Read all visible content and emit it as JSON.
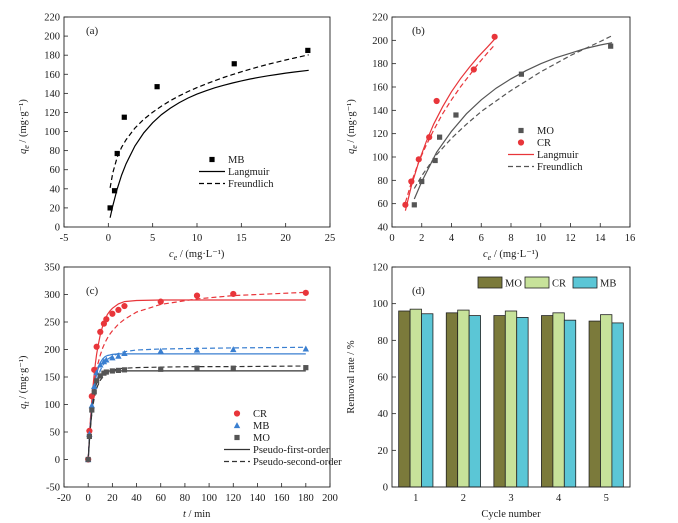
{
  "chart_data": [
    {
      "panel": "(a)",
      "type": "scatter",
      "xlabel": "c_e / (mg·L⁻¹)",
      "ylabel": "q_e / (mg·g⁻¹)",
      "xlim": [
        -5,
        25
      ],
      "ylim": [
        0,
        220
      ],
      "xticks": [
        -5,
        0,
        5,
        10,
        15,
        20,
        25
      ],
      "yticks": [
        0,
        20,
        40,
        60,
        80,
        100,
        120,
        140,
        160,
        180,
        200,
        220
      ],
      "legend_position": "right-middle",
      "series": [
        {
          "name": "MB",
          "kind": "points",
          "marker": "square",
          "color": "#000000",
          "x": [
            0.2,
            0.7,
            1.0,
            1.8,
            5.5,
            14.2,
            22.5
          ],
          "y": [
            20,
            38,
            77,
            115,
            147,
            171,
            185
          ]
        },
        {
          "name": "Langmuir",
          "kind": "line",
          "dash": "solid",
          "color": "#000000",
          "x": [
            0.2,
            0.5,
            1,
            1.5,
            2,
            3,
            4,
            5,
            6,
            7,
            8,
            9,
            10,
            11,
            12,
            13,
            14,
            15,
            16,
            17,
            18,
            19,
            20,
            21,
            22.6
          ],
          "y": [
            9.6,
            22.2,
            39.9,
            54.4,
            66.3,
            84.9,
            98.7,
            109.3,
            117.8,
            124.6,
            130.3,
            135.1,
            139.2,
            142.7,
            145.8,
            148.5,
            150.9,
            153.1,
            155.0,
            156.8,
            158.4,
            159.8,
            161.2,
            162.4,
            164.2
          ]
        },
        {
          "name": "Freundlich",
          "kind": "line",
          "dash": "dashed",
          "color": "#000000",
          "x": [
            0.2,
            0.5,
            1,
            1.5,
            2,
            3,
            4,
            5,
            6,
            7,
            8,
            9,
            10,
            11,
            12,
            13,
            14,
            15,
            16,
            17,
            18,
            19,
            20,
            21,
            22.6
          ],
          "y": [
            41.0,
            56.8,
            73.1,
            83.5,
            91.5,
            103.6,
            112.8,
            120.3,
            126.7,
            132.4,
            137.4,
            141.9,
            146.0,
            149.8,
            153.3,
            156.6,
            159.7,
            162.6,
            165.3,
            167.9,
            170.4,
            172.7,
            175.0,
            177.1,
            180.4
          ]
        }
      ]
    },
    {
      "panel": "(b)",
      "type": "scatter",
      "xlabel": "c_e / (mg·L⁻¹)",
      "ylabel": "q_e / (mg·g⁻¹)",
      "xlim": [
        0,
        16
      ],
      "ylim": [
        40,
        220
      ],
      "xticks": [
        0,
        2,
        4,
        6,
        8,
        10,
        12,
        14,
        16
      ],
      "yticks": [
        40,
        60,
        80,
        100,
        120,
        140,
        160,
        180,
        200,
        220
      ],
      "legend_position": "right-middle",
      "series": [
        {
          "name": "MO",
          "kind": "points",
          "marker": "square",
          "color": "#555555",
          "x": [
            1.5,
            2.0,
            2.9,
            3.2,
            4.3,
            8.7,
            14.7
          ],
          "y": [
            59,
            79,
            97,
            117,
            136,
            171,
            195
          ]
        },
        {
          "name": "CR",
          "kind": "points",
          "marker": "circle",
          "color": "#e8353a",
          "x": [
            0.9,
            1.3,
            1.8,
            2.5,
            3.0,
            5.5,
            6.9
          ],
          "y": [
            59,
            79,
            98,
            117,
            148,
            175,
            203
          ]
        },
        {
          "name": "Langmuir",
          "kind": "line",
          "dash": "solid",
          "color": "#e8353a",
          "x": [
            0.9,
            1.3,
            1.8,
            2.3,
            2.8,
            3.4,
            4.0,
            4.6,
            5.2,
            5.8,
            6.4,
            6.9
          ],
          "y": [
            54,
            75,
            96,
            113,
            128,
            143,
            156,
            167,
            177,
            186,
            194,
            201
          ]
        },
        {
          "name": "Freundlich",
          "kind": "line",
          "dash": "dashed",
          "color": "#e8353a",
          "x": [
            0.9,
            1.3,
            1.8,
            2.3,
            2.8,
            3.4,
            4.0,
            4.6,
            5.2,
            5.8,
            6.4,
            6.9
          ],
          "y": [
            61,
            78,
            96,
            110,
            123,
            137,
            149,
            160,
            170,
            180,
            189,
            196
          ]
        },
        {
          "name": "Langmuir",
          "kind": "line",
          "dash": "solid",
          "color": "#555555",
          "x": [
            1.5,
            2.0,
            3.0,
            4.0,
            5.0,
            6.0,
            7.0,
            8.0,
            9.0,
            10.0,
            11.0,
            12.0,
            13.0,
            14.0,
            14.8
          ],
          "y": [
            64,
            79,
            104,
            122,
            137,
            149,
            159,
            167,
            174,
            180,
            185,
            189,
            193,
            196,
            198
          ]
        },
        {
          "name": "Freundlich",
          "kind": "line",
          "dash": "dashed",
          "color": "#555555",
          "x": [
            1.5,
            2.0,
            3.0,
            4.0,
            5.0,
            6.0,
            7.0,
            8.0,
            9.0,
            10.0,
            11.0,
            12.0,
            13.0,
            14.0,
            14.8
          ],
          "y": [
            73,
            84,
            102,
            116,
            128,
            139,
            148,
            157,
            165,
            173,
            180,
            187,
            193,
            199,
            204
          ]
        }
      ],
      "legend": [
        {
          "name": "MO",
          "kind": "points",
          "marker": "square",
          "color": "#555555"
        },
        {
          "name": "CR",
          "kind": "points",
          "marker": "circle",
          "color": "#e8353a"
        },
        {
          "name": "Langmuir",
          "kind": "line",
          "dash": "solid",
          "color": "#e8353a"
        },
        {
          "name": "Freundlich",
          "kind": "line",
          "dash": "dashed",
          "color": "#555555"
        }
      ]
    },
    {
      "panel": "(c)",
      "type": "scatter",
      "xlabel": "t / min",
      "ylabel": "q_t / (mg·g⁻¹)",
      "xlim": [
        -20,
        200
      ],
      "ylim": [
        -50,
        350
      ],
      "xticks": [
        -20,
        0,
        20,
        40,
        60,
        80,
        100,
        120,
        140,
        160,
        180,
        200
      ],
      "yticks": [
        -50,
        0,
        50,
        100,
        150,
        200,
        250,
        300,
        350
      ],
      "legend_position": "bottom-right",
      "series": [
        {
          "name": "CR",
          "kind": "points",
          "marker": "circle",
          "color": "#e8353a",
          "x": [
            0,
            1,
            3,
            5,
            7,
            10,
            13,
            15,
            20,
            25,
            30,
            60,
            90,
            120,
            180
          ],
          "y": [
            0,
            52,
            115,
            163,
            205,
            232,
            247,
            255,
            265,
            272,
            279,
            287,
            298,
            301,
            303
          ]
        },
        {
          "name": "MB",
          "kind": "points",
          "marker": "triangle",
          "color": "#3a7fd0",
          "x": [
            0,
            1,
            3,
            5,
            7,
            10,
            13,
            15,
            20,
            25,
            30,
            60,
            90,
            120,
            180
          ],
          "y": [
            0,
            46,
            98,
            133,
            158,
            172,
            178,
            181,
            185,
            188,
            193,
            197,
            199,
            200,
            201
          ]
        },
        {
          "name": "MO",
          "kind": "points",
          "marker": "square",
          "color": "#555555",
          "x": [
            0,
            1,
            3,
            5,
            7,
            10,
            13,
            15,
            20,
            25,
            30,
            60,
            90,
            120,
            180
          ],
          "y": [
            0,
            42,
            90,
            123,
            143,
            152,
            157,
            159,
            161,
            162,
            163,
            164,
            166,
            166,
            167
          ]
        },
        {
          "name": "Pseudo-first-order",
          "kind": "line",
          "dash": "solid",
          "color": "#e8353a",
          "x": [
            0,
            1,
            2,
            3,
            4,
            5,
            6,
            7,
            8,
            10,
            12,
            14,
            16,
            18,
            20,
            25,
            30,
            40,
            60,
            90,
            120,
            180
          ],
          "y": [
            0,
            41,
            77,
            107,
            133,
            155,
            175,
            191,
            205,
            227,
            243,
            255,
            264,
            270,
            275,
            283,
            287,
            289,
            290,
            290,
            290,
            290
          ]
        },
        {
          "name": "Pseudo-second-order",
          "kind": "line",
          "dash": "dashed",
          "color": "#e8353a",
          "x": [
            0,
            1,
            2,
            3,
            4,
            5,
            6,
            7,
            8,
            10,
            12,
            14,
            16,
            18,
            20,
            25,
            30,
            40,
            60,
            90,
            120,
            180
          ],
          "y": [
            0,
            44,
            77,
            102,
            122,
            139,
            153,
            164,
            174,
            190,
            203,
            213,
            221,
            228,
            234,
            246,
            255,
            268,
            282,
            292,
            298,
            304
          ]
        },
        {
          "name": "Pseudo-first-order",
          "kind": "line",
          "dash": "solid",
          "color": "#3a7fd0",
          "x": [
            0,
            1,
            2,
            3,
            4,
            5,
            6,
            7,
            8,
            10,
            12,
            14,
            16,
            18,
            20,
            25,
            30,
            40,
            60,
            90,
            120,
            180
          ],
          "y": [
            0,
            36,
            67,
            92,
            113,
            130,
            144,
            155,
            164,
            176,
            183,
            187,
            189,
            190,
            191,
            192,
            192,
            192,
            192,
            192,
            192,
            192
          ]
        },
        {
          "name": "Pseudo-second-order",
          "kind": "line",
          "dash": "dashed",
          "color": "#3a7fd0",
          "x": [
            0,
            1,
            2,
            3,
            4,
            5,
            6,
            7,
            8,
            10,
            12,
            14,
            16,
            18,
            20,
            25,
            30,
            40,
            60,
            90,
            120,
            180
          ],
          "y": [
            0,
            38,
            67,
            89,
            107,
            121,
            132,
            142,
            150,
            162,
            171,
            177,
            182,
            185,
            188,
            193,
            196,
            199,
            201,
            202,
            203,
            204
          ]
        },
        {
          "name": "Pseudo-first-order",
          "kind": "line",
          "dash": "solid",
          "color": "#333333",
          "x": [
            0,
            1,
            2,
            3,
            4,
            5,
            6,
            7,
            8,
            10,
            12,
            14,
            16,
            18,
            20,
            25,
            30,
            40,
            60,
            90,
            120,
            180
          ],
          "y": [
            0,
            33,
            62,
            86,
            105,
            120,
            131,
            139,
            145,
            153,
            157,
            159,
            160,
            161,
            161,
            161,
            161,
            161,
            161,
            161,
            161,
            161
          ]
        },
        {
          "name": "Pseudo-second-order",
          "kind": "line",
          "dash": "dashed",
          "color": "#333333",
          "x": [
            0,
            1,
            2,
            3,
            4,
            5,
            6,
            7,
            8,
            10,
            12,
            14,
            16,
            18,
            20,
            25,
            30,
            40,
            60,
            90,
            120,
            180
          ],
          "y": [
            0,
            35,
            62,
            83,
            99,
            111,
            121,
            129,
            135,
            144,
            150,
            155,
            158,
            160,
            162,
            165,
            166,
            167,
            168,
            169,
            169,
            170
          ]
        }
      ],
      "legend": [
        {
          "name": "CR",
          "kind": "points",
          "marker": "circle",
          "color": "#e8353a"
        },
        {
          "name": "MB",
          "kind": "points",
          "marker": "triangle",
          "color": "#3a7fd0"
        },
        {
          "name": "MO",
          "kind": "points",
          "marker": "square",
          "color": "#555555"
        },
        {
          "name": "Pseudo-first-order",
          "kind": "line",
          "dash": "solid",
          "color": "#333333"
        },
        {
          "name": "Pseudo-second-order",
          "kind": "line",
          "dash": "dashed",
          "color": "#333333"
        }
      ]
    },
    {
      "panel": "(d)",
      "type": "bar",
      "xlabel": "Cycle number",
      "ylabel": "Removal rate / %",
      "ylim": [
        0,
        120
      ],
      "yticks": [
        0,
        20,
        40,
        60,
        80,
        100,
        120
      ],
      "categories": [
        "1",
        "2",
        "3",
        "4",
        "5"
      ],
      "legend_position": "top",
      "series": [
        {
          "name": "MO",
          "color": "#7b7a3b",
          "values": [
            96,
            95,
            93.5,
            93.5,
            90.5
          ]
        },
        {
          "name": "CR",
          "color": "#c7e29a",
          "values": [
            97,
            96.5,
            96,
            95,
            94
          ]
        },
        {
          "name": "MB",
          "color": "#5bc6d6",
          "values": [
            94.5,
            93.5,
            92.5,
            91,
            89.5
          ]
        }
      ]
    }
  ]
}
